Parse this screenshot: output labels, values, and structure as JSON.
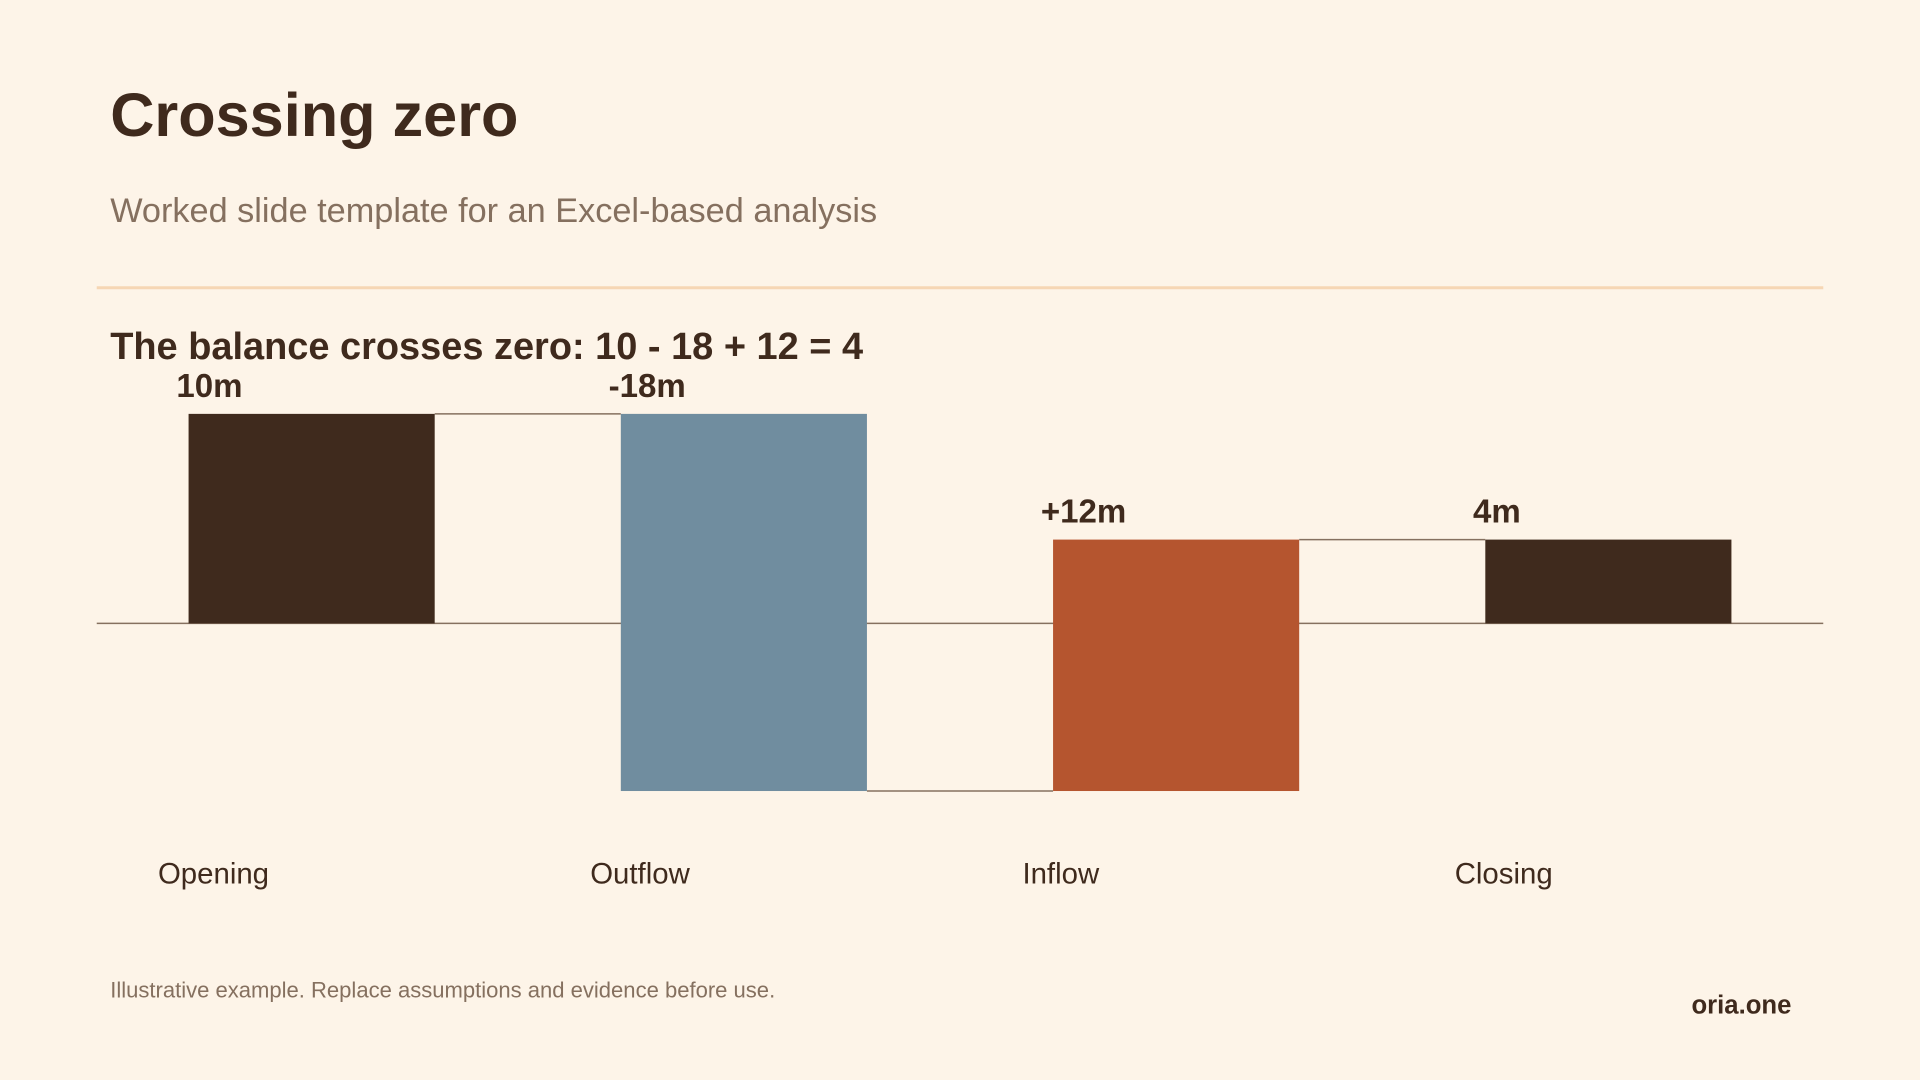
{
  "title": "Crossing zero",
  "subtitle": "Worked slide template for an Excel-based analysis",
  "footnote": "Illustrative example. Replace assumptions and evidence before use.",
  "brand": "oria.one",
  "chart_data": {
    "type": "waterfall",
    "title": "The balance crosses zero: 10 - 18 + 12 = 4",
    "categories": [
      "Opening",
      "Outflow",
      "Inflow",
      "Closing"
    ],
    "values": [
      10,
      -18,
      12,
      4
    ],
    "value_labels": [
      "10m",
      "-18m",
      "+12m",
      "4m"
    ],
    "colors": [
      "#3f2a1d",
      "#708d9f",
      "#b5552f",
      "#3f2a1d"
    ]
  }
}
